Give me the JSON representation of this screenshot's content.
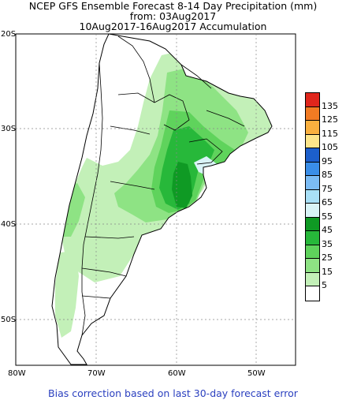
{
  "header": {
    "line1": "NCEP GFS Ensemble Forecast 8-14 Day Precipitation (mm)",
    "line2": "from: 03Aug2017",
    "line3": "10Aug2017-16Aug2017 Accumulation"
  },
  "axes": {
    "lat_ticks": [
      "20S",
      "30S",
      "40S",
      "50S"
    ],
    "lon_ticks": [
      "80W",
      "70W",
      "60W",
      "50W"
    ]
  },
  "legend": {
    "labels": [
      "135",
      "125",
      "115",
      "105",
      "95",
      "85",
      "75",
      "65",
      "55",
      "45",
      "35",
      "25",
      "15",
      "5"
    ],
    "colors": [
      "#e0261c",
      "#f27b23",
      "#f9b03f",
      "#fde58a",
      "#1c5fcc",
      "#3a8ee8",
      "#7bbcf5",
      "#a8e0f7",
      "#d9f4f7",
      "#0f9a24",
      "#27b83a",
      "#5fd35c",
      "#8ee384",
      "#c3f0b8",
      "#ffffff"
    ]
  },
  "footer": "Bias correction based on last 30-day forecast error"
}
